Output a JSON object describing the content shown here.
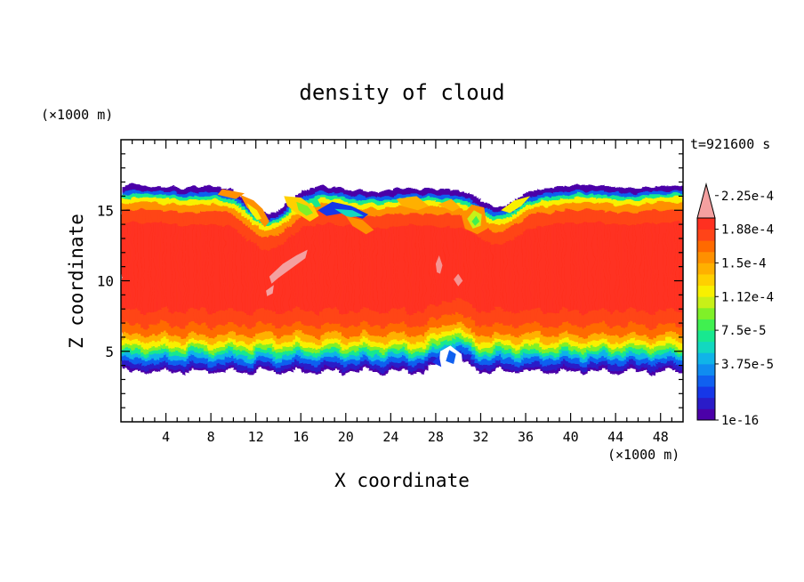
{
  "chart_data": {
    "type": "heatmap",
    "title": "density of cloud",
    "xlabel": "X coordinate",
    "ylabel": "Z coordinate",
    "x_unit": "(×1000 m)",
    "y_unit": "(×1000 m)",
    "time_label": "t=921600 s",
    "xlim": [
      0,
      50
    ],
    "ylim": [
      0,
      20
    ],
    "x_ticks": [
      4,
      8,
      12,
      16,
      20,
      24,
      28,
      32,
      36,
      40,
      44,
      48
    ],
    "y_ticks": [
      5,
      10,
      15
    ],
    "x_minor_step": 1,
    "y_minor_step": 1,
    "colorbar": {
      "labels": [
        "2.25e-4",
        "1.88e-4",
        "1.5e-4",
        "1.12e-4",
        "7.5e-5",
        "3.75e-5",
        "1e-16"
      ],
      "extend": "max"
    },
    "palette": [
      "#4b00a8",
      "#2a1cc8",
      "#1637e8",
      "#1060f0",
      "#108cf0",
      "#10b4e8",
      "#12d8c0",
      "#18e890",
      "#40f050",
      "#80f028",
      "#c8f018",
      "#f8f000",
      "#ffd000",
      "#ffb000",
      "#ff9000",
      "#ff6a00",
      "#ff4418",
      "#ff3020"
    ],
    "extend_color": "#f4a0a0"
  }
}
